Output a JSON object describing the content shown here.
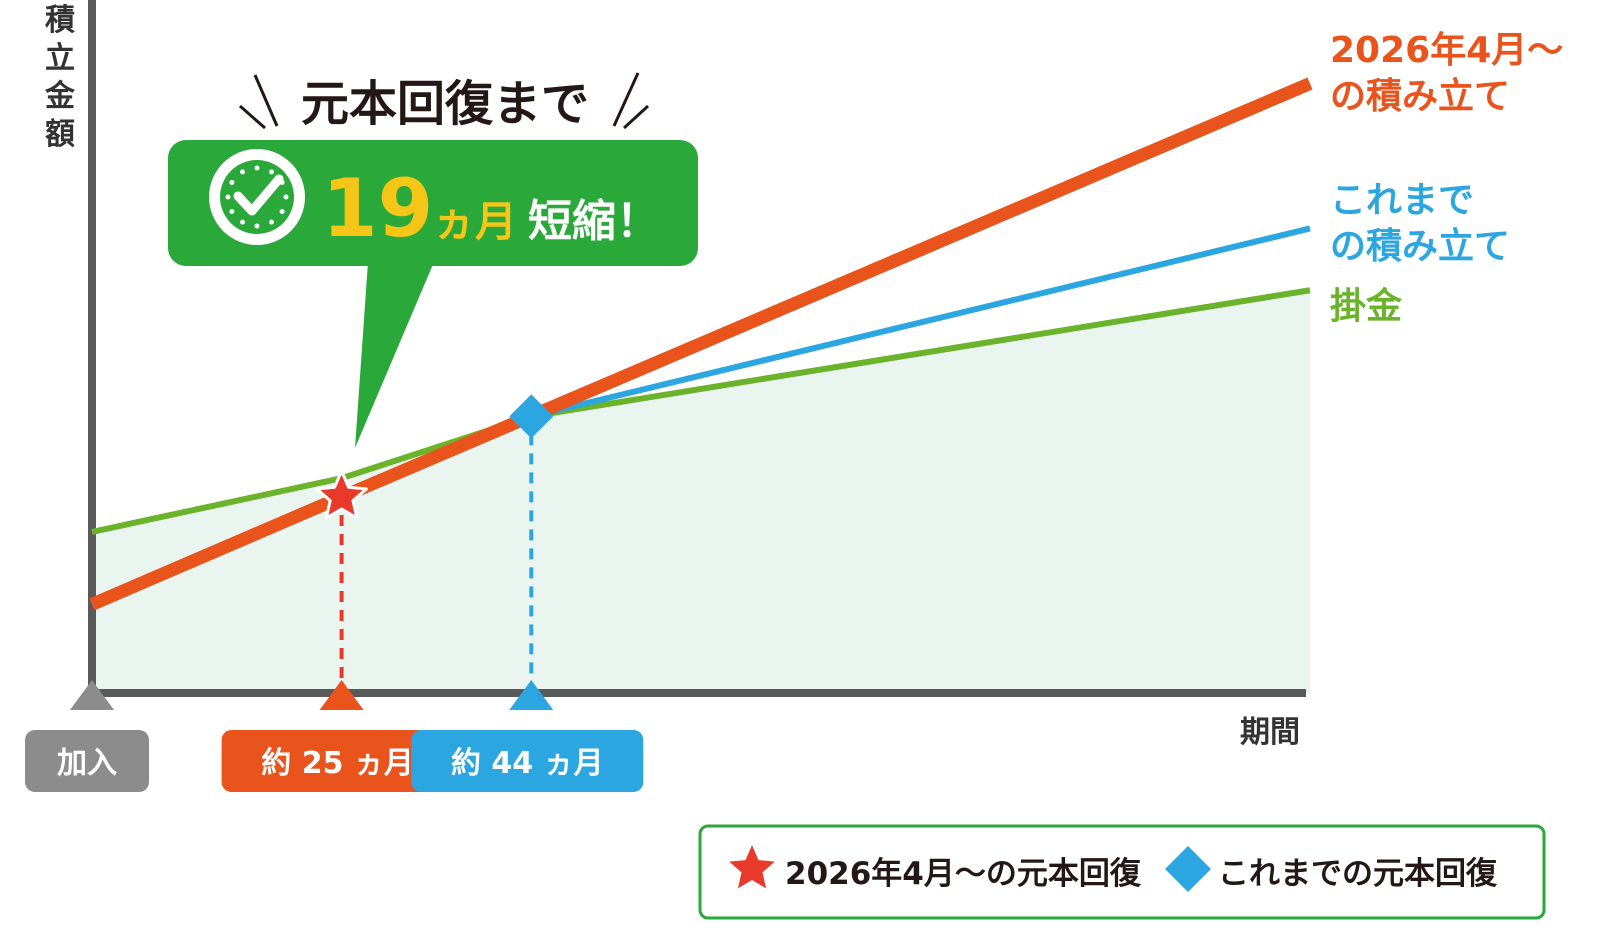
{
  "chart_data": {
    "type": "line",
    "ylabel": "積立金額",
    "xlabel": "期間",
    "x_markers": [
      {
        "label": "加入",
        "x": 0,
        "color": "#8c8c8c"
      },
      {
        "label": "約 25 ヵ月",
        "x": 25,
        "color": "#e8541c"
      },
      {
        "label": "約 44 ヵ月",
        "x": 44,
        "color": "#2ba6e0"
      }
    ],
    "series": [
      {
        "name": "2026年4月～の積み立て",
        "color": "#e8541c",
        "values": [
          [
            0,
            0.33
          ],
          [
            25,
            0.73
          ],
          [
            122,
            2.27
          ]
        ]
      },
      {
        "name": "これまでの積み立て",
        "color": "#2ba6e0",
        "values": [
          [
            0,
            0.33
          ],
          [
            44,
            1.03
          ],
          [
            122,
            1.73
          ]
        ]
      },
      {
        "name": "掛金",
        "color": "#6ab32a",
        "values": [
          [
            0,
            0.6
          ],
          [
            25,
            0.8
          ],
          [
            44,
            1.03
          ],
          [
            122,
            1.5
          ]
        ]
      }
    ],
    "series_labels": [
      [
        "2026年4月～",
        "の積み立て"
      ],
      [
        "これまで",
        "の積み立て"
      ],
      [
        "掛金"
      ]
    ],
    "points": [
      {
        "shape": "star",
        "x": 25,
        "y": 0.73,
        "color": "#e8392a"
      },
      {
        "shape": "diamond",
        "x": 44,
        "y": 1.03,
        "color": "#2ba6e0"
      }
    ],
    "area_under": "掛金",
    "area_color": "#eaf5f0",
    "callout": {
      "heading": "元本回復まで",
      "value": "19",
      "unit": "ヵ月",
      "suffix": "短縮！",
      "bubble_color": "#2aa83a",
      "value_color": "#f5c518",
      "icon": "clock-check-icon"
    },
    "legend": {
      "placement": "bottom-right",
      "border_color": "#2aa83a",
      "items": [
        {
          "label": "2026年4月～の元本回復",
          "marker": "star",
          "color": "#e8392a"
        },
        {
          "label": "これまでの元本回復",
          "marker": "diamond",
          "color": "#2ba6e0"
        }
      ]
    },
    "xlim": [
      0,
      122
    ],
    "ylim": [
      0,
      2.35
    ],
    "grid": false
  }
}
